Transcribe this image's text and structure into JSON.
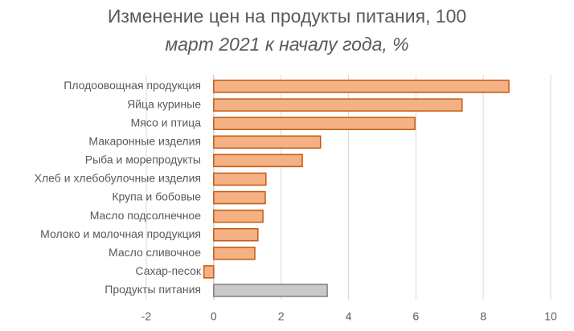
{
  "chart_data": {
    "type": "bar",
    "orientation": "horizontal",
    "title": "Изменение цен на продукты питания, 100",
    "subtitle": "март 2021 к началу года, %",
    "categories": [
      "Плодоовощная продукция",
      "Яйца куриные",
      "Мясо и птица",
      "Макаронные изделия",
      "Рыба и морепродукты",
      "Хлеб и хлебобулочные изделия",
      "Крупа и бобовые",
      "Масло подсолнечное",
      "Молоко и молочная продукция",
      "Масло сливочное",
      "Сахар-песок",
      "Продукты питания"
    ],
    "values": [
      8.76,
      7.37,
      5.97,
      3.17,
      2.63,
      1.55,
      1.53,
      1.46,
      1.31,
      1.22,
      -0.29,
      3.37
    ],
    "colors": [
      "#f4b183",
      "#f4b183",
      "#f4b183",
      "#f4b183",
      "#f4b183",
      "#f4b183",
      "#f4b183",
      "#f4b183",
      "#f4b183",
      "#f4b183",
      "#f4b183",
      "#c9c9c9"
    ],
    "edge_colors": [
      "#c55a11",
      "#c55a11",
      "#c55a11",
      "#c55a11",
      "#c55a11",
      "#c55a11",
      "#c55a11",
      "#c55a11",
      "#c55a11",
      "#c55a11",
      "#c55a11",
      "#7f7f7f"
    ],
    "xlim": [
      -2,
      10
    ],
    "xticks": [
      -2,
      0,
      2,
      4,
      6,
      8,
      10
    ],
    "grid": true
  }
}
